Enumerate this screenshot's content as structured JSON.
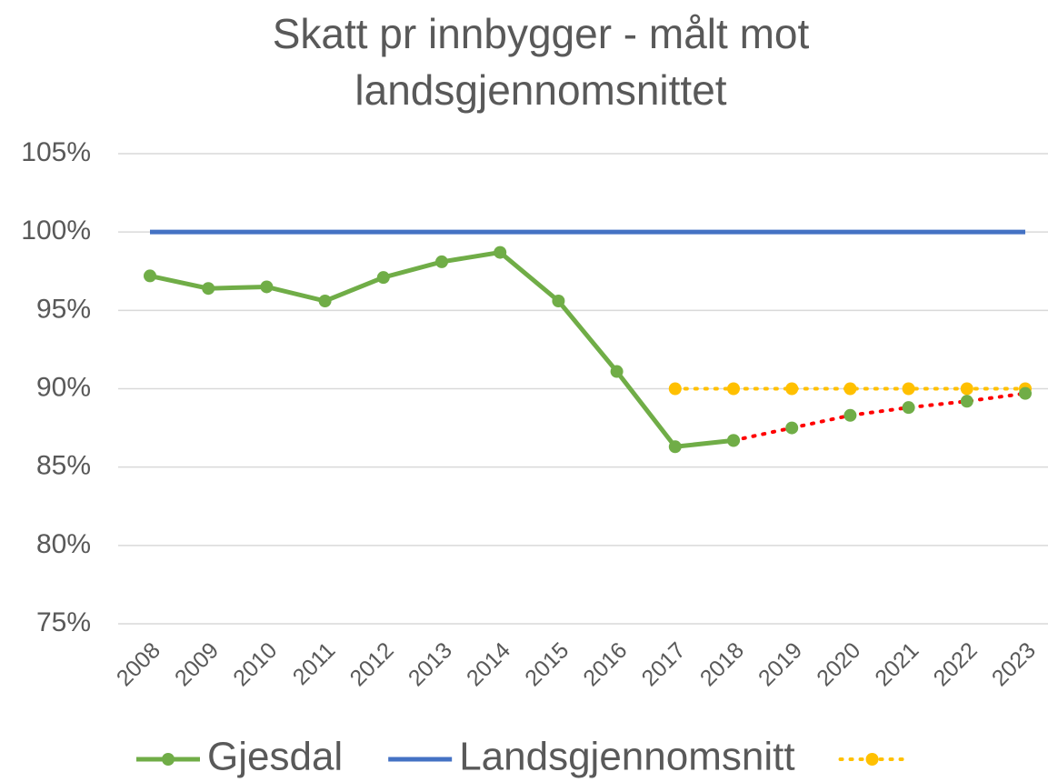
{
  "chart_data": {
    "type": "line",
    "title": "Skatt pr innbygger - målt mot landsgjennomsnittet",
    "categories": [
      "2008",
      "2009",
      "2010",
      "2011",
      "2012",
      "2013",
      "2014",
      "2015",
      "2016",
      "2017",
      "2018",
      "2019",
      "2020",
      "2021",
      "2022",
      "2023"
    ],
    "series": [
      {
        "name": "Gjesdal",
        "color": "#70ad47",
        "marker": true,
        "dash": "solid",
        "values": [
          97.2,
          96.4,
          96.5,
          95.6,
          97.1,
          98.1,
          98.7,
          95.6,
          91.1,
          86.3,
          86.7,
          null,
          null,
          null,
          null,
          null
        ]
      },
      {
        "name": "Landsgjennomsnitt",
        "color": "#4472c4",
        "marker": false,
        "dash": "solid",
        "values": [
          100,
          100,
          100,
          100,
          100,
          100,
          100,
          100,
          100,
          100,
          100,
          100,
          100,
          100,
          100,
          100
        ]
      },
      {
        "color": "#ffc000",
        "marker": true,
        "dash": "dotted",
        "values": [
          null,
          null,
          null,
          null,
          null,
          null,
          null,
          null,
          null,
          90,
          90,
          90,
          90,
          90,
          90,
          90
        ]
      },
      {
        "color": "#ff0000",
        "marker_color": "#70ad47",
        "marker": true,
        "dash": "dotted",
        "in_legend": false,
        "values": [
          null,
          null,
          null,
          null,
          null,
          null,
          null,
          null,
          null,
          null,
          86.7,
          87.5,
          88.3,
          88.8,
          89.2,
          89.7
        ]
      }
    ],
    "ylim": [
      75,
      105
    ],
    "yticks": [
      {
        "value": 75,
        "label": "75%"
      },
      {
        "value": 80,
        "label": "80%"
      },
      {
        "value": 85,
        "label": "85%"
      },
      {
        "value": 90,
        "label": "90%"
      },
      {
        "value": 95,
        "label": "95%"
      },
      {
        "value": 100,
        "label": "100%"
      },
      {
        "value": 105,
        "label": "105%"
      }
    ],
    "grid": true,
    "legend": "bottom"
  }
}
